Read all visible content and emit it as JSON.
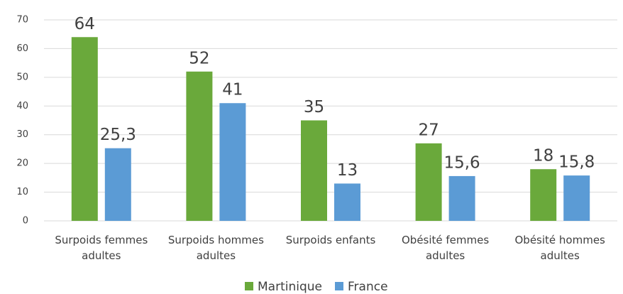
{
  "chart_data": {
    "type": "bar",
    "categories": [
      "Surpoids femmes\nadultes",
      "Surpoids hommes\nadultes",
      "Surpoids enfants",
      "Obésité femmes\nadultes",
      "Obésité hommes\nadultes"
    ],
    "series": [
      {
        "name": "Martinique",
        "color": "#6aa93b",
        "values": [
          64,
          52,
          35,
          27,
          18
        ],
        "value_labels": [
          "64",
          "52",
          "35",
          "27",
          "18"
        ]
      },
      {
        "name": "France",
        "color": "#5b9bd5",
        "values": [
          25.3,
          41,
          13,
          15.6,
          15.8
        ],
        "value_labels": [
          "25,3",
          "41",
          "13",
          "15,6",
          "15,8"
        ]
      }
    ],
    "ylim": [
      0,
      70
    ],
    "yticks": [
      0,
      10,
      20,
      30,
      40,
      50,
      60,
      70
    ],
    "grid": true,
    "legend": "bottom"
  }
}
